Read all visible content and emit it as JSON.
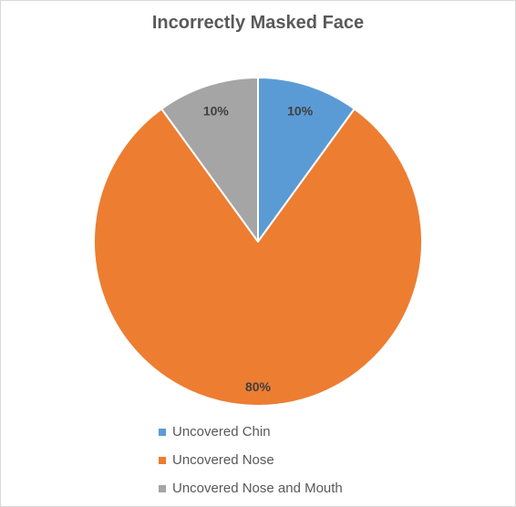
{
  "chart_data": {
    "type": "pie",
    "title": "Incorrectly Masked Face",
    "categories": [
      "Uncovered Chin",
      "Uncovered Nose",
      "Uncovered Nose and Mouth"
    ],
    "values": [
      10,
      80,
      10
    ],
    "labels": [
      "10%",
      "80%",
      "10%"
    ],
    "colors": [
      "#5b9bd5",
      "#ed7d31",
      "#a5a5a5"
    ],
    "legend_position": "bottom"
  }
}
